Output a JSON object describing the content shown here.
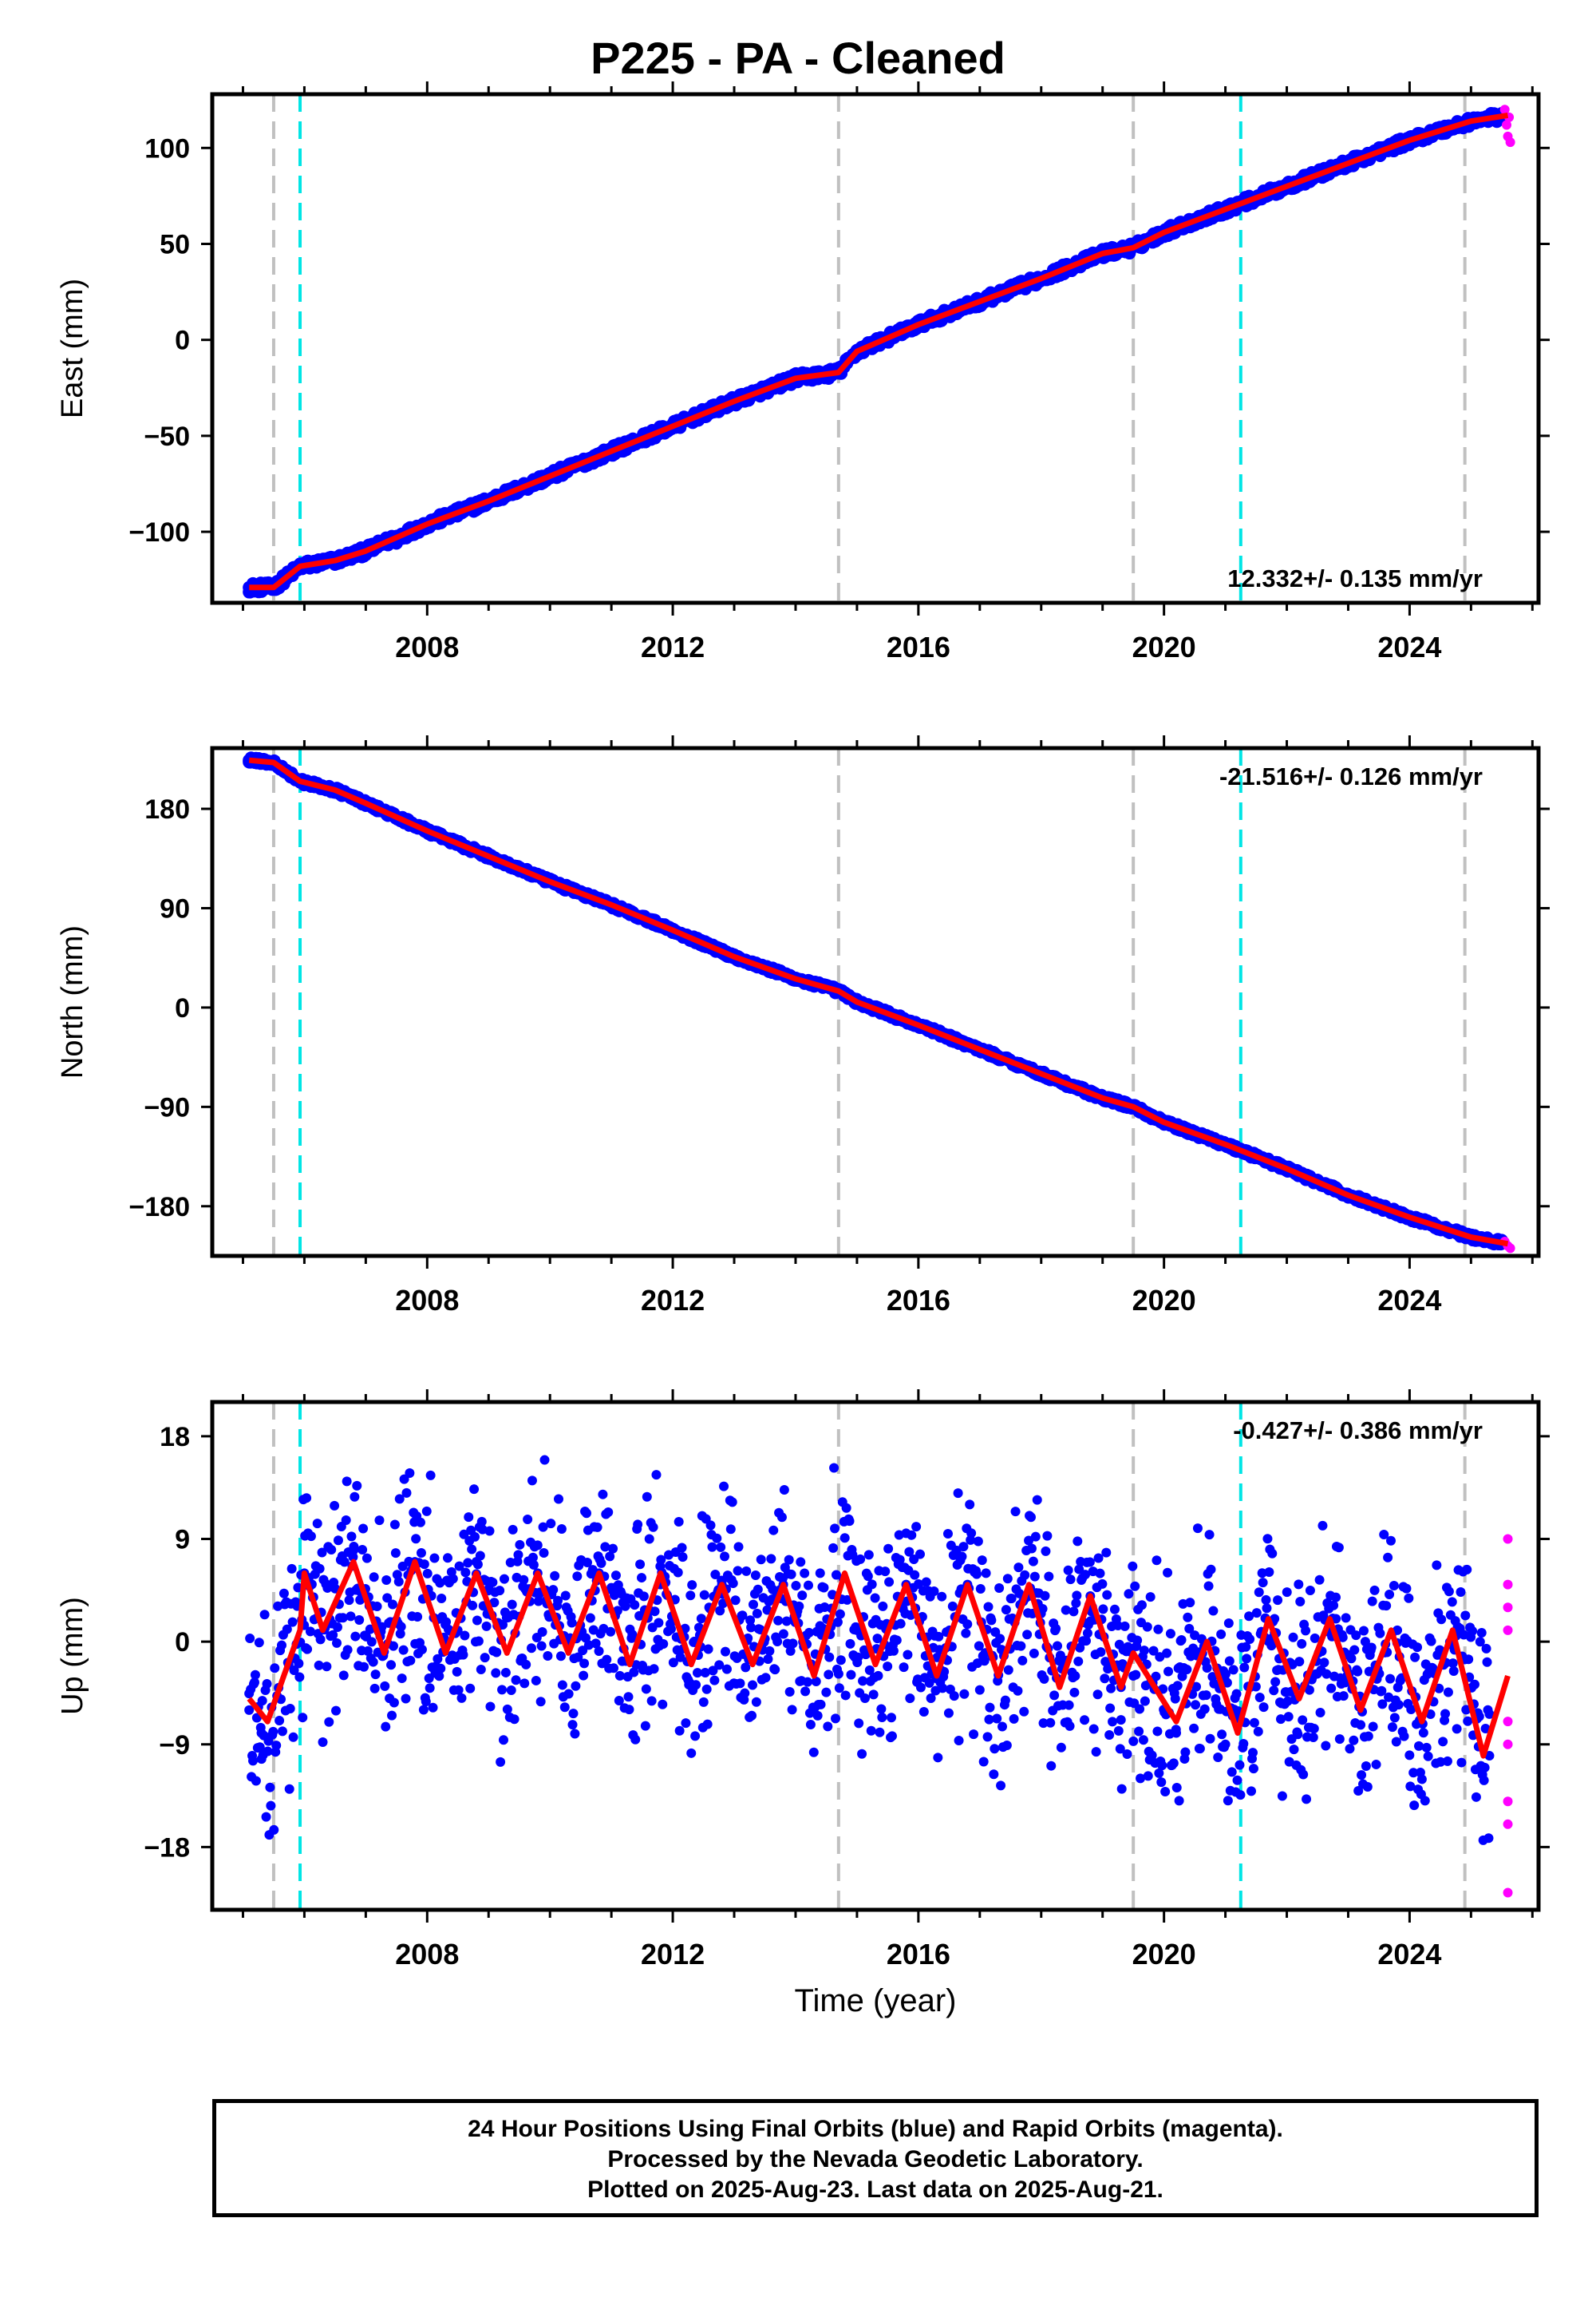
{
  "title": "P225  - PA - Cleaned",
  "colors": {
    "final_orbits": "#0000ff",
    "rapid_orbits": "#ff00ff",
    "model_fit": "#ff0000",
    "event_gray": "#c0c0c0",
    "event_cyan": "#00e5e5"
  },
  "chart_data": [
    {
      "type": "scatter",
      "component": "East",
      "ylabel": "East (mm)",
      "xlabel": "",
      "xlim": [
        2004.5,
        2026.1
      ],
      "ylim": [
        -137,
        128
      ],
      "yticks": [
        -100,
        -50,
        0,
        50,
        100
      ],
      "ytick_labels": [
        "−100",
        "−50",
        "0",
        "50",
        "100"
      ],
      "xticks": [
        2008,
        2012,
        2016,
        2020,
        2024
      ],
      "xtick_labels": [
        "2008",
        "2012",
        "2016",
        "2020",
        "2024"
      ],
      "rate_label": "12.332+/- 0.135 mm/yr",
      "rate_position": "bottom-right",
      "gray_events": [
        2005.5,
        2014.7,
        2019.5,
        2024.9
      ],
      "cyan_events": [
        2005.93,
        2021.25
      ],
      "series": [
        {
          "name": "Final Orbits",
          "x": [
            2005.1,
            2005.4,
            2005.6,
            2005.95,
            2006.5,
            2007.0,
            2007.5,
            2008.0,
            2009.0,
            2010.0,
            2011.0,
            2012.0,
            2013.0,
            2014.0,
            2014.7,
            2015.0,
            2016.0,
            2017.0,
            2018.0,
            2019.0,
            2019.5,
            2020.0,
            2021.0,
            2022.0,
            2023.0,
            2024.0,
            2025.0,
            2025.5
          ],
          "y": [
            -129,
            -129,
            -126,
            -118,
            -116,
            -110,
            -106,
            -96,
            -84,
            -72,
            -58,
            -44,
            -32,
            -20,
            -17,
            -6,
            8,
            20,
            32,
            46,
            49,
            56,
            68,
            80,
            92,
            104,
            115,
            118
          ]
        },
        {
          "name": "Rapid Orbits",
          "x": [
            2025.55,
            2025.58,
            2025.6,
            2025.62,
            2025.64
          ],
          "y": [
            120,
            112,
            106,
            116,
            103
          ]
        },
        {
          "name": "Model Fit",
          "x": [
            2005.1,
            2005.5,
            2005.93,
            2006.5,
            2007.0,
            2008.0,
            2009.0,
            2010.0,
            2011.0,
            2012.0,
            2013.0,
            2014.0,
            2014.7,
            2015.0,
            2016.0,
            2017.0,
            2018.0,
            2019.0,
            2019.5,
            2020.0,
            2021.0,
            2022.0,
            2023.0,
            2024.0,
            2025.0,
            2025.6
          ],
          "y": [
            -129,
            -129,
            -118,
            -115,
            -110,
            -96,
            -84,
            -71,
            -58,
            -45,
            -32,
            -20,
            -17,
            -6,
            8,
            20,
            32,
            45,
            48,
            56,
            68,
            80,
            92,
            104,
            114,
            117
          ]
        }
      ]
    },
    {
      "type": "scatter",
      "component": "North",
      "ylabel": "North (mm)",
      "xlabel": "",
      "xlim": [
        2004.5,
        2026.1
      ],
      "ylim": [
        -225,
        235
      ],
      "yticks": [
        -180,
        -90,
        0,
        90,
        180
      ],
      "ytick_labels": [
        "−180",
        "−90",
        "0",
        "90",
        "180"
      ],
      "xticks": [
        2008,
        2012,
        2016,
        2020,
        2024
      ],
      "xtick_labels": [
        "2008",
        "2012",
        "2016",
        "2020",
        "2024"
      ],
      "rate_label": "-21.516+/- 0.126 mm/yr",
      "rate_position": "top-right",
      "gray_events": [
        2005.5,
        2014.7,
        2019.5,
        2024.9
      ],
      "cyan_events": [
        2005.93,
        2021.25
      ],
      "series": [
        {
          "name": "Final Orbits",
          "x": [
            2005.1,
            2005.5,
            2005.93,
            2006.5,
            2007.0,
            2008.0,
            2009.0,
            2010.0,
            2011.0,
            2012.0,
            2013.0,
            2014.0,
            2014.7,
            2015.0,
            2016.0,
            2017.0,
            2018.0,
            2019.0,
            2019.5,
            2020.0,
            2021.0,
            2022.0,
            2023.0,
            2024.0,
            2025.0,
            2025.5
          ],
          "y": [
            224,
            222,
            205,
            198,
            185,
            160,
            137,
            114,
            93,
            70,
            46,
            26,
            15,
            5,
            -16,
            -38,
            -60,
            -82,
            -90,
            -104,
            -124,
            -146,
            -170,
            -190,
            -208,
            -212
          ]
        },
        {
          "name": "Rapid Orbits",
          "x": [
            2025.55,
            2025.6,
            2025.64
          ],
          "y": [
            -212,
            -216,
            -218
          ]
        },
        {
          "name": "Model Fit",
          "x": [
            2005.1,
            2005.5,
            2005.93,
            2006.5,
            2007.0,
            2008.0,
            2009.0,
            2010.0,
            2011.0,
            2012.0,
            2013.0,
            2014.0,
            2014.7,
            2015.0,
            2016.0,
            2017.0,
            2018.0,
            2019.0,
            2019.5,
            2020.0,
            2021.0,
            2022.0,
            2023.0,
            2024.0,
            2025.0,
            2025.6
          ],
          "y": [
            224,
            222,
            205,
            197,
            185,
            160,
            137,
            114,
            93,
            70,
            46,
            26,
            15,
            5,
            -16,
            -38,
            -60,
            -82,
            -90,
            -104,
            -124,
            -146,
            -170,
            -190,
            -208,
            -214
          ]
        }
      ]
    },
    {
      "type": "scatter",
      "component": "Up",
      "ylabel": "Up (mm)",
      "xlabel": "Time (year)",
      "xlim": [
        2004.5,
        2026.1
      ],
      "ylim": [
        -23.5,
        21
      ],
      "yticks": [
        -18,
        -9,
        0,
        9,
        18
      ],
      "ytick_labels": [
        "−18",
        "−9",
        "0",
        "9",
        "18"
      ],
      "xticks": [
        2008,
        2012,
        2016,
        2020,
        2024
      ],
      "xtick_labels": [
        "2008",
        "2012",
        "2016",
        "2020",
        "2024"
      ],
      "rate_label": "-0.427+/- 0.386 mm/yr",
      "rate_position": "top-right",
      "gray_events": [
        2005.5,
        2014.7,
        2019.5,
        2024.9
      ],
      "cyan_events": [
        2005.93,
        2021.25
      ],
      "series": [
        {
          "name": "Final Orbits",
          "x": [
            2005.1,
            2005.3,
            2006.0,
            2006.8,
            2007.8,
            2008.8,
            2009.8,
            2010.8,
            2011.8,
            2012.8,
            2013.8,
            2014.4,
            2015.0,
            2015.8,
            2016.8,
            2017.8,
            2018.8,
            2019.3,
            2019.5,
            2020.2,
            2021.0,
            2021.8,
            2022.8,
            2023.8,
            2024.8,
            2025.3
          ],
          "y": [
            -6,
            -8,
            6,
            8,
            7,
            7,
            6,
            6,
            5,
            5,
            5,
            6,
            1,
            5,
            5,
            4,
            4,
            -4,
            -3,
            -8,
            -9,
            2,
            2,
            1,
            1,
            -10
          ]
        },
        {
          "name": "Rapid Orbits",
          "x": [
            2025.6,
            2025.6,
            2025.6,
            2025.6,
            2025.6,
            2025.6,
            2025.6,
            2025.6,
            2025.6
          ],
          "y": [
            9,
            5,
            3,
            1,
            -7,
            -9,
            -14,
            -16,
            -22
          ]
        },
        {
          "name": "Model Fit",
          "x": [
            2005.1,
            2005.4,
            2005.93,
            2006.0,
            2006.3,
            2006.8,
            2007.3,
            2007.8,
            2008.3,
            2008.8,
            2009.3,
            2009.8,
            2010.3,
            2010.8,
            2011.3,
            2011.8,
            2012.3,
            2012.8,
            2013.3,
            2013.8,
            2014.3,
            2014.8,
            2015.3,
            2015.8,
            2016.3,
            2016.8,
            2017.3,
            2017.8,
            2018.3,
            2018.8,
            2019.3,
            2019.5,
            2020.2,
            2020.7,
            2021.2,
            2021.7,
            2022.2,
            2022.7,
            2023.2,
            2023.7,
            2024.2,
            2024.7,
            2025.2,
            2025.6
          ],
          "y": [
            -5,
            -7,
            1,
            6,
            1,
            7,
            -1,
            7,
            -1,
            6,
            -1,
            6,
            -1,
            6,
            -2,
            6,
            -2,
            5,
            -2,
            5,
            -3,
            6,
            -2,
            5,
            -3,
            5,
            -3,
            5,
            -4,
            4,
            -4,
            -1,
            -7,
            0,
            -8,
            2,
            -5,
            2,
            -6,
            1,
            -7,
            1,
            -10,
            -3
          ]
        }
      ]
    }
  ],
  "footer": {
    "line1": "24 Hour Positions Using Final Orbits (blue) and Rapid Orbits (magenta).",
    "line2": "Processed by the Nevada Geodetic Laboratory.",
    "line3": "Plotted on 2025-Aug-23. Last data on 2025-Aug-21."
  }
}
